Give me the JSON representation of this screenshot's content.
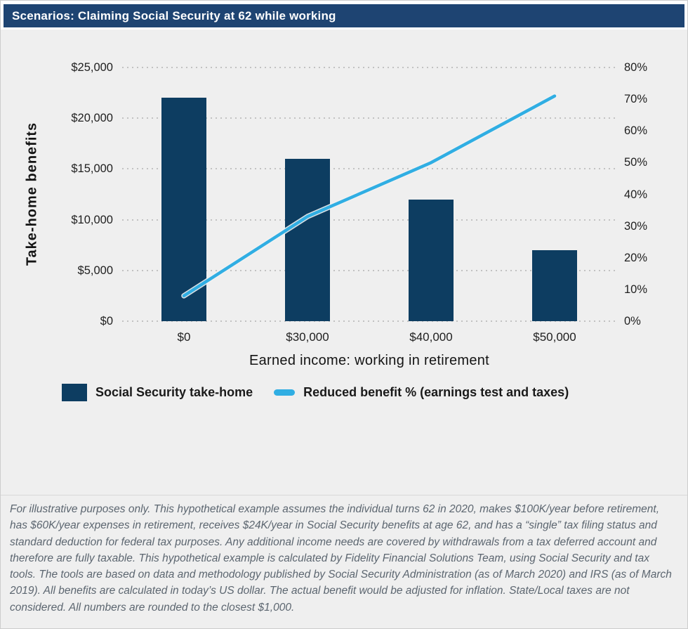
{
  "header": {
    "title": "Scenarios: Claiming Social Security at 62 while working"
  },
  "colors": {
    "header_bg": "#1e4472",
    "panel_bg": "#efefef",
    "bar": "#0d3d61",
    "line": "#30aee3",
    "grid": "#c2c2c2",
    "axis_text": "#1f1f1f",
    "footnote_text": "#5c6670"
  },
  "chart_data": {
    "type": "bar",
    "title": "Scenarios: Claiming Social Security at 62 while working",
    "categories": [
      "$0",
      "$30,000",
      "$40,000",
      "$50,000"
    ],
    "series": [
      {
        "name": "Social Security take-home",
        "type": "bar",
        "axis": "left",
        "values": [
          22000,
          16000,
          12000,
          7000
        ],
        "color": "#0d3d61"
      },
      {
        "name": "Reduced benefit % (earnings test and taxes)",
        "type": "line",
        "axis": "right",
        "values": [
          8,
          33,
          50,
          71
        ],
        "color": "#30aee3"
      }
    ],
    "xlabel": "Earned income: working in retirement",
    "ylabel_left": "Take-home benefits",
    "left_axis": {
      "min": 0,
      "max": 25000,
      "step": 5000,
      "tick_labels": [
        "$0",
        "$5,000",
        "$10,000",
        "$15,000",
        "$20,000",
        "$25,000"
      ]
    },
    "right_axis": {
      "min": 0,
      "max": 80,
      "step": 10,
      "tick_labels": [
        "0%",
        "10%",
        "20%",
        "30%",
        "40%",
        "50%",
        "60%",
        "70%",
        "80%"
      ]
    },
    "grid": "horizontal dotted at left-axis ticks",
    "legend_position": "bottom-left"
  },
  "footnote": "For illustrative purposes only. This hypothetical example assumes the individual turns 62 in 2020, makes $100K/year before retirement, has $60K/year expenses in retirement, receives $24K/year in Social Security benefits at age 62, and has a “single” tax filing status and standard deduction for federal tax purposes. Any additional income needs are covered by withdrawals from a tax deferred account and therefore are fully taxable. This hypothetical example is calculated by Fidelity Financial Solutions Team, using Social Security and tax tools. The tools are based on data and methodology published by Social Security Administration (as of March 2020) and IRS (as of March 2019). All benefits are calculated in today’s US dollar. The actual benefit would be adjusted for inflation. State/Local taxes are not considered. All numbers are rounded to the closest $1,000."
}
